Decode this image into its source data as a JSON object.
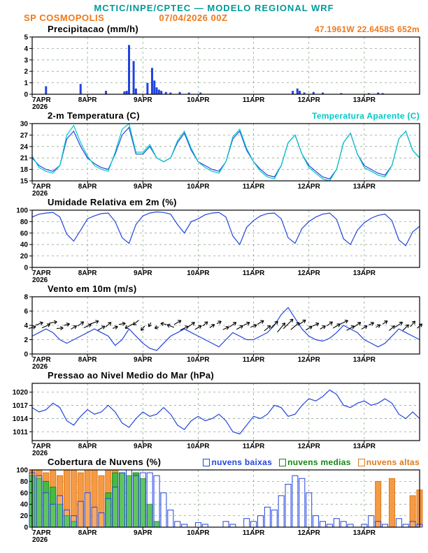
{
  "header": {
    "title": "MCTIC/INPE/CPTEC — MODELO REGIONAL WRF",
    "station": "SP COSMOPOLIS",
    "run": "07/04/2026 00Z",
    "location": "47.1961W 22.6458S 652m"
  },
  "colors": {
    "title": "#009999",
    "orange": "#f07818",
    "blue": "#2244dd",
    "cyan": "#00c8c8",
    "green": "#22aa22",
    "grid": "#8fa98f",
    "axis": "#000000"
  },
  "x_axis": {
    "hours_start": 0,
    "hours_end": 168,
    "tick_hours": [
      0,
      24,
      48,
      72,
      96,
      120,
      144
    ],
    "tick_labels": [
      "7APR",
      "8APR",
      "9APR",
      "10APR",
      "11APR",
      "12APR",
      "13APR"
    ],
    "year_label": "2026"
  },
  "chart_data": [
    {
      "id": "precip",
      "type": "bar",
      "title": "Precipitacao (mm/h)",
      "ylim": [
        0,
        5
      ],
      "yticks": [
        0,
        1,
        2,
        3,
        4,
        5
      ],
      "color": "#2244dd",
      "points": [
        [
          6,
          0.7
        ],
        [
          21,
          0.9
        ],
        [
          32,
          0.3
        ],
        [
          40,
          0.25
        ],
        [
          41,
          0.3
        ],
        [
          42,
          4.3
        ],
        [
          44,
          2.9
        ],
        [
          45,
          0.5
        ],
        [
          50,
          1.0
        ],
        [
          52,
          2.3
        ],
        [
          53,
          1.2
        ],
        [
          54,
          0.6
        ],
        [
          55,
          0.4
        ],
        [
          56,
          0.3
        ],
        [
          58,
          0.2
        ],
        [
          60,
          0.15
        ],
        [
          64,
          0.2
        ],
        [
          68,
          0.15
        ],
        [
          73,
          0.15
        ],
        [
          113,
          0.3
        ],
        [
          115,
          0.5
        ],
        [
          116,
          0.3
        ],
        [
          118,
          0.15
        ],
        [
          122,
          0.2
        ],
        [
          126,
          0.15
        ],
        [
          134,
          0.1
        ],
        [
          146,
          0.1
        ],
        [
          150,
          0.15
        ],
        [
          152,
          0.1
        ]
      ]
    },
    {
      "id": "temp",
      "type": "line",
      "title": "2-m Temperatura (C)",
      "right_label": "Temperatura Aparente (C)",
      "ylim": [
        15,
        30
      ],
      "yticks": [
        15,
        18,
        21,
        24,
        27,
        30
      ],
      "x_step": 3,
      "series": [
        {
          "name": "2-m Temperatura (C)",
          "color": "#2244dd",
          "values": [
            21,
            19,
            18,
            17.5,
            19,
            26,
            28,
            24,
            21,
            19.5,
            18.5,
            18,
            22,
            27,
            29,
            22,
            22,
            24,
            21,
            20,
            21,
            25,
            27.5,
            23,
            20,
            19,
            18,
            17.5,
            20,
            26,
            28,
            23,
            20,
            18,
            16.5,
            16,
            19,
            25,
            27,
            22,
            19,
            17.5,
            16,
            15.5,
            18,
            25,
            27.5,
            22,
            19,
            18,
            17,
            16.5,
            19,
            26,
            28,
            23,
            21
          ]
        },
        {
          "name": "Temperatura Aparente (C)",
          "color": "#00c8c8",
          "values": [
            21.5,
            18.5,
            17.5,
            17,
            19,
            27,
            29.5,
            25,
            21.5,
            19,
            18,
            17.5,
            22.5,
            28.5,
            30,
            22.5,
            22.5,
            24.5,
            21,
            20,
            21,
            25.5,
            28,
            23.5,
            20,
            18.5,
            17.5,
            17,
            20,
            26.5,
            28.5,
            23.5,
            20,
            17.5,
            16,
            15.5,
            19,
            25,
            27,
            22,
            18.5,
            17,
            15.5,
            15,
            18,
            25,
            27.5,
            22,
            18.5,
            17.5,
            16.5,
            16,
            19,
            26,
            28,
            23,
            21
          ]
        }
      ]
    },
    {
      "id": "humidity",
      "type": "line",
      "title": "Umidade Relativa em 2m (%)",
      "ylim": [
        0,
        100
      ],
      "yticks": [
        0,
        20,
        40,
        60,
        80,
        100
      ],
      "x_step": 3,
      "series": [
        {
          "name": "Umidade Relativa em 2m (%)",
          "color": "#2244dd",
          "values": [
            88,
            93,
            95,
            96,
            88,
            58,
            46,
            65,
            85,
            90,
            94,
            95,
            80,
            52,
            42,
            75,
            90,
            95,
            97,
            96,
            93,
            75,
            60,
            80,
            85,
            92,
            95,
            96,
            88,
            55,
            40,
            70,
            82,
            90,
            94,
            95,
            85,
            52,
            42,
            68,
            80,
            88,
            93,
            95,
            84,
            50,
            40,
            65,
            78,
            86,
            91,
            93,
            82,
            48,
            38,
            62,
            72
          ]
        }
      ]
    },
    {
      "id": "wind",
      "type": "wind",
      "title": "Vento em 10m (m/s)",
      "ylim": [
        0,
        8
      ],
      "yticks": [
        0,
        2,
        4,
        6,
        8
      ],
      "x_step": 3,
      "series": [
        {
          "name": "Vento em 10m (m/s)",
          "color": "#2244dd",
          "values": [
            2.5,
            3,
            3.5,
            3,
            2,
            1.5,
            2,
            2.5,
            3,
            3.5,
            3,
            2.5,
            1.2,
            2,
            3.5,
            2.5,
            1.5,
            0.8,
            0.5,
            1.5,
            2.5,
            3,
            3.5,
            3,
            2.5,
            2,
            1.5,
            1,
            2,
            3,
            2.5,
            2,
            2,
            2.5,
            3,
            4,
            5.5,
            6.5,
            5,
            3.5,
            2.5,
            2,
            1.8,
            2.2,
            3,
            4,
            3.5,
            3,
            2,
            1.5,
            1,
            1.5,
            2.5,
            3.5,
            3,
            2.5,
            2
          ]
        }
      ],
      "arrows": {
        "color": "#000000",
        "y": [
          3.7,
          4.2,
          3.9,
          4.4,
          3.6,
          4.1,
          3.7,
          4.2,
          3.9,
          4.4,
          3.6,
          4.1,
          3.7,
          4.2,
          3.9,
          4.4,
          3.6,
          4.1,
          3.7,
          4.2,
          3.9,
          4.4,
          3.6,
          4.1,
          3.7,
          4.2,
          3.9,
          4.4,
          3.6,
          4.1,
          3.7,
          4.2,
          3.9,
          4.4,
          3.6,
          4.1,
          3.7,
          4.2,
          3.9,
          4.4,
          3.6,
          4.1,
          3.7,
          4.2,
          3.9,
          4.4,
          3.6,
          4.1,
          3.7,
          4.2,
          3.9,
          4.4,
          3.6,
          4.1,
          3.7,
          4.2,
          3.9
        ],
        "angle": [
          15,
          20,
          25,
          10,
          5,
          15,
          30,
          35,
          25,
          20,
          30,
          40,
          20,
          10,
          -150,
          -140,
          -130,
          -120,
          -160,
          170,
          160,
          30,
          25,
          35,
          30,
          40,
          35,
          30,
          25,
          35,
          30,
          25,
          20,
          30,
          40,
          45,
          50,
          45,
          40,
          35,
          30,
          25,
          30,
          35,
          30,
          25,
          30,
          35,
          30,
          25,
          30,
          35,
          40,
          35,
          45,
          50,
          40
        ]
      }
    },
    {
      "id": "pressure",
      "type": "line",
      "title": "Pressao ao Nivel Medio do Mar (hPa)",
      "ylim": [
        1009,
        1022
      ],
      "yticks": [
        1011,
        1014,
        1017,
        1020
      ],
      "x_step": 3,
      "series": [
        {
          "name": "Pressao ao Nivel Medio do Mar (hPa)",
          "color": "#2244dd",
          "values": [
            1016.5,
            1015.5,
            1016,
            1017.5,
            1016.5,
            1013.5,
            1012.5,
            1014.5,
            1016,
            1015,
            1015.5,
            1017,
            1015.5,
            1013,
            1012,
            1014,
            1015.5,
            1014.5,
            1015,
            1016.5,
            1015,
            1012.5,
            1011.5,
            1013.5,
            1014.5,
            1013.5,
            1014,
            1015,
            1013.5,
            1011,
            1010.5,
            1012.5,
            1014.5,
            1014,
            1015,
            1017,
            1016.5,
            1014.5,
            1015,
            1017,
            1018.5,
            1018,
            1019,
            1020.5,
            1019.5,
            1017,
            1016.5,
            1017.5,
            1018,
            1017,
            1017.5,
            1018.5,
            1017.5,
            1015,
            1014,
            1015.5,
            1014
          ]
        }
      ]
    },
    {
      "id": "clouds",
      "type": "cloudbars",
      "title": "Cobertura de Nuvens (%)",
      "ylim": [
        0,
        100
      ],
      "yticks": [
        0,
        20,
        40,
        60,
        80,
        100
      ],
      "x_step": 3,
      "series": [
        {
          "name": "nuvens altas",
          "color": "#e07818",
          "fill": "#f59a45",
          "fill_opacity": 1,
          "values": [
            100,
            100,
            95,
            100,
            90,
            100,
            100,
            95,
            100,
            100,
            90,
            100,
            100,
            40,
            0,
            0,
            0,
            0,
            0,
            0,
            0,
            0,
            0,
            0,
            0,
            0,
            0,
            0,
            0,
            0,
            0,
            0,
            0,
            0,
            0,
            0,
            0,
            0,
            0,
            0,
            0,
            0,
            0,
            0,
            0,
            0,
            0,
            0,
            0,
            0,
            80,
            0,
            85,
            0,
            0,
            55,
            65
          ]
        },
        {
          "name": "nuvens medias",
          "color": "#118811",
          "fill": "#44bb44",
          "fill_opacity": 1,
          "values": [
            90,
            85,
            80,
            70,
            40,
            20,
            10,
            0,
            0,
            0,
            0,
            60,
            95,
            95,
            90,
            95,
            85,
            40,
            10,
            0,
            0,
            0,
            0,
            0,
            0,
            0,
            0,
            0,
            0,
            0,
            0,
            0,
            0,
            0,
            0,
            0,
            0,
            0,
            0,
            0,
            0,
            0,
            0,
            0,
            0,
            0,
            0,
            0,
            0,
            0,
            0,
            0,
            0,
            0,
            0,
            0,
            0
          ]
        },
        {
          "name": "nuvens baixas",
          "color": "#2244dd",
          "fill": "#ffffff",
          "fill_opacity": 0.15,
          "values": [
            95,
            90,
            60,
            40,
            55,
            30,
            20,
            45,
            60,
            35,
            25,
            50,
            70,
            95,
            100,
            90,
            95,
            95,
            90,
            60,
            30,
            10,
            5,
            0,
            8,
            5,
            0,
            0,
            10,
            5,
            0,
            15,
            10,
            20,
            35,
            30,
            55,
            75,
            90,
            85,
            60,
            20,
            10,
            5,
            15,
            10,
            5,
            0,
            5,
            20,
            10,
            5,
            0,
            15,
            5,
            10,
            5
          ]
        }
      ]
    }
  ]
}
